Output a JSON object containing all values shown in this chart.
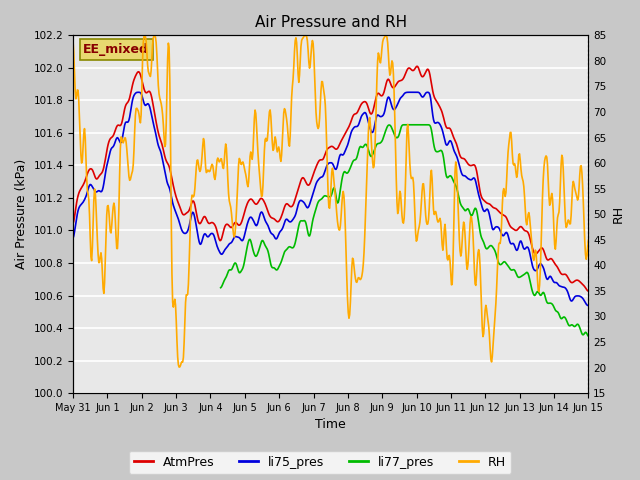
{
  "title": "Air Pressure and RH",
  "xlabel": "Time",
  "ylabel_left": "Air Pressure (kPa)",
  "ylabel_right": "RH",
  "ylim_left": [
    100.0,
    102.2
  ],
  "ylim_right": [
    15,
    85
  ],
  "yticks_left": [
    100.0,
    100.2,
    100.4,
    100.6,
    100.8,
    101.0,
    101.2,
    101.4,
    101.6,
    101.8,
    102.0,
    102.2
  ],
  "yticks_right": [
    15,
    20,
    25,
    30,
    35,
    40,
    45,
    50,
    55,
    60,
    65,
    70,
    75,
    80,
    85
  ],
  "fig_facecolor": "#c8c8c8",
  "plot_facecolor": "#e8e8e8",
  "legend_items": [
    "AtmPres",
    "li75_pres",
    "li77_pres",
    "RH"
  ],
  "legend_colors": [
    "#dd0000",
    "#0000dd",
    "#00bb00",
    "#ffaa00"
  ],
  "annotation_text": "EE_mixed",
  "annotation_color": "#880000",
  "annotation_box_facecolor": "#e8d870",
  "annotation_box_edgecolor": "#888800",
  "grid_color": "#ffffff",
  "line_width": 1.2,
  "xtick_positions": [
    0,
    1,
    2,
    3,
    4,
    5,
    6,
    7,
    8,
    9,
    10,
    11,
    12,
    13,
    14,
    15
  ],
  "xtick_labels": [
    "May 31",
    "Jun 1",
    "Jun 2",
    "Jun 3",
    "Jun 4",
    "Jun 5",
    "Jun 6",
    "Jun 7",
    "Jun 8",
    "Jun 9",
    "Jun 10",
    "Jun 11",
    "Jun 12",
    "Jun 13",
    "Jun 14",
    "Jun 15"
  ],
  "title_fontsize": 11,
  "axis_fontsize": 9,
  "tick_fontsize": 7.5,
  "legend_fontsize": 9
}
